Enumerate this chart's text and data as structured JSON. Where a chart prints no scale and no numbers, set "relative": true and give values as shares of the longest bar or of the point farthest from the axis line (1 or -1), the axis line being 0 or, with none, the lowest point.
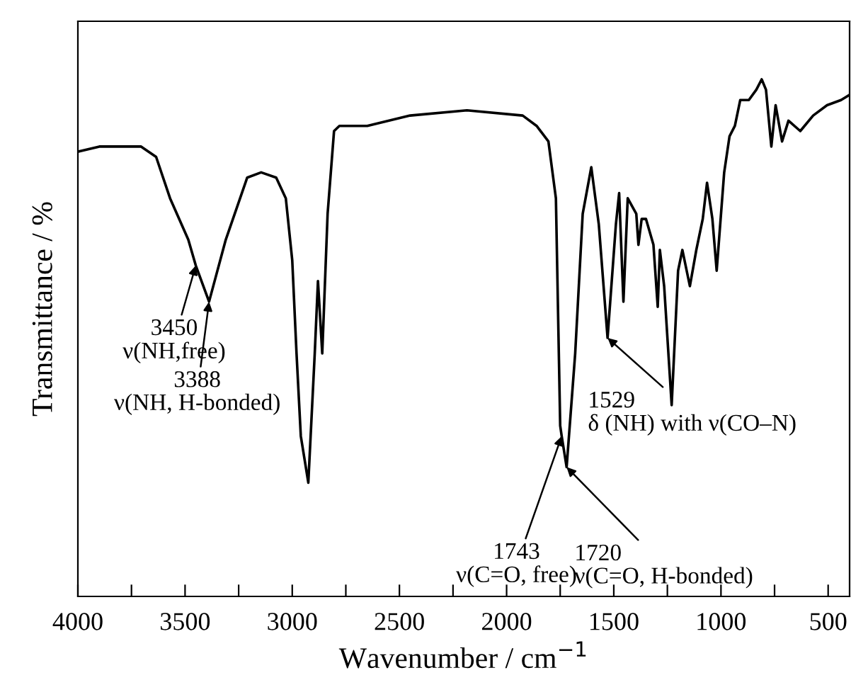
{
  "chart_data": {
    "type": "line",
    "relative": true,
    "xlabel": "Wavenumber / cm$^{−1}$",
    "ylabel": "Transmittance / %",
    "xlim": [
      4000,
      400
    ],
    "xticks": [
      4000,
      {
        "value": 3750,
        "label": null
      },
      3500,
      {
        "value": 3250,
        "label": null
      },
      3000,
      {
        "value": 2750,
        "label": null
      },
      2500,
      {
        "value": 2250,
        "label": null
      },
      2000,
      {
        "value": 1750,
        "label": null
      },
      1500,
      {
        "value": 1250,
        "label": null
      },
      1000,
      {
        "value": 750,
        "label": null
      },
      500
    ],
    "tick_labels": "x",
    "grid": false,
    "legend": false,
    "series": [
      {
        "color": "#000000",
        "x": [
          4000,
          3900,
          3705,
          3635,
          3570,
          3485,
          3450,
          3388,
          3310,
          3210,
          3145,
          3075,
          3030,
          3000,
          2980,
          2960,
          2925,
          2895,
          2880,
          2860,
          2835,
          2805,
          2780,
          2650,
          2450,
          2185,
          1925,
          1860,
          1805,
          1770,
          1750,
          1743,
          1720,
          1680,
          1645,
          1605,
          1570,
          1529,
          1490,
          1475,
          1455,
          1435,
          1395,
          1385,
          1370,
          1350,
          1315,
          1295,
          1285,
          1265,
          1230,
          1200,
          1180,
          1145,
          1115,
          1085,
          1065,
          1040,
          1020,
          985,
          960,
          935,
          910,
          870,
          835,
          810,
          790,
          765,
          745,
          715,
          685,
          630,
          570,
          505,
          440,
          400
        ],
        "values": [
          0.86,
          0.87,
          0.87,
          0.85,
          0.77,
          0.69,
          0.64,
          0.57,
          0.69,
          0.81,
          0.82,
          0.81,
          0.77,
          0.65,
          0.47,
          0.31,
          0.22,
          0.47,
          0.61,
          0.47,
          0.74,
          0.9,
          0.91,
          0.91,
          0.93,
          0.94,
          0.93,
          0.91,
          0.88,
          0.77,
          0.33,
          0.31,
          0.25,
          0.47,
          0.74,
          0.83,
          0.72,
          0.5,
          0.72,
          0.78,
          0.57,
          0.77,
          0.74,
          0.68,
          0.73,
          0.73,
          0.68,
          0.56,
          0.67,
          0.6,
          0.37,
          0.63,
          0.67,
          0.6,
          0.67,
          0.73,
          0.8,
          0.73,
          0.63,
          0.82,
          0.89,
          0.91,
          0.96,
          0.96,
          0.98,
          1.0,
          0.98,
          0.87,
          0.95,
          0.88,
          0.92,
          0.9,
          0.93,
          0.95,
          0.96,
          0.97
        ]
      }
    ],
    "annotations": [
      {
        "text": "3450\nν(NH,free)",
        "x": 3450,
        "y": 0.64
      },
      {
        "text": "3388\nν(NH, H-bonded)",
        "x": 3388,
        "y": 0.57
      },
      {
        "text": "1743\nν(C=O, free)",
        "x": 1743,
        "y": 0.31
      },
      {
        "text": "1720\nν(C=O, H-bonded)",
        "x": 1720,
        "y": 0.25
      },
      {
        "text": "1529\nδ (NH) with ν(CO–N)",
        "x": 1529,
        "y": 0.5
      }
    ]
  }
}
